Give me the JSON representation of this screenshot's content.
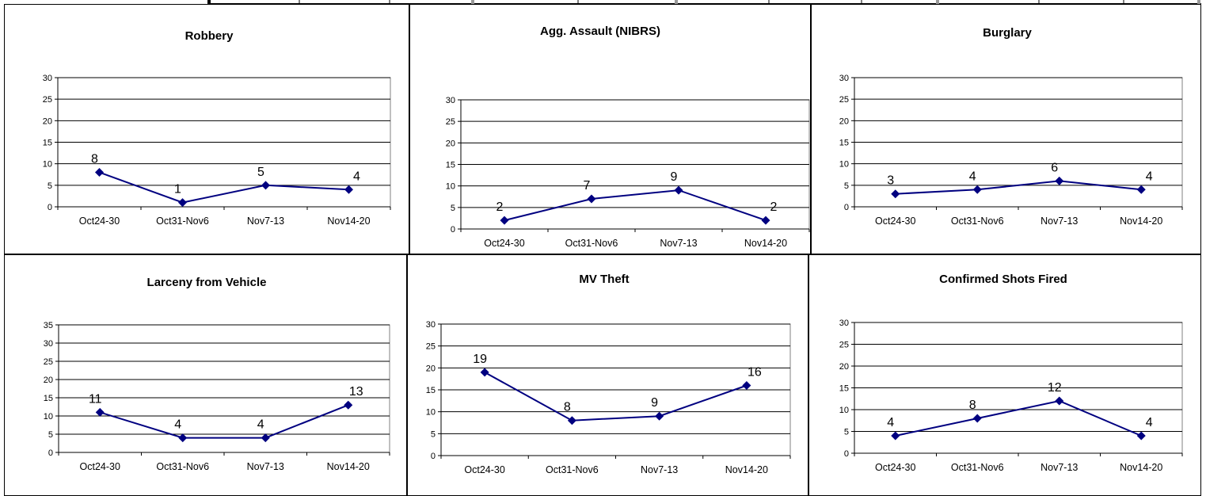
{
  "colors": {
    "series": "#000080",
    "gridline": "#000000",
    "plot_border": "#808080"
  },
  "chart_data": [
    {
      "type": "line",
      "title": "Robbery",
      "categories": [
        "Oct24-30",
        "Oct31-Nov6",
        "Nov7-13",
        "Nov14-20"
      ],
      "values": [
        8,
        1,
        5,
        4
      ],
      "ylim": [
        0,
        30
      ],
      "ytick_step": 5,
      "grid": true,
      "marker": "diamond",
      "data_labels": true
    },
    {
      "type": "line",
      "title": "Agg. Assault (NIBRS)",
      "categories": [
        "Oct24-30",
        "Oct31-Nov6",
        "Nov7-13",
        "Nov14-20"
      ],
      "values": [
        2,
        7,
        9,
        2
      ],
      "ylim": [
        0,
        30
      ],
      "ytick_step": 5,
      "grid": true,
      "marker": "diamond",
      "data_labels": true
    },
    {
      "type": "line",
      "title": "Burglary",
      "categories": [
        "Oct24-30",
        "Oct31-Nov6",
        "Nov7-13",
        "Nov14-20"
      ],
      "values": [
        3,
        4,
        6,
        4
      ],
      "ylim": [
        0,
        30
      ],
      "ytick_step": 5,
      "grid": true,
      "marker": "diamond",
      "data_labels": true
    },
    {
      "type": "line",
      "title": "Larceny from Vehicle",
      "categories": [
        "Oct24-30",
        "Oct31-Nov6",
        "Nov7-13",
        "Nov14-20"
      ],
      "values": [
        11,
        4,
        4,
        13
      ],
      "ylim": [
        0,
        35
      ],
      "ytick_step": 5,
      "grid": true,
      "marker": "diamond",
      "data_labels": true
    },
    {
      "type": "line",
      "title": "MV Theft",
      "categories": [
        "Oct24-30",
        "Oct31-Nov6",
        "Nov7-13",
        "Nov14-20"
      ],
      "values": [
        19,
        8,
        9,
        16
      ],
      "ylim": [
        0,
        30
      ],
      "ytick_step": 5,
      "grid": true,
      "marker": "diamond",
      "data_labels": true
    },
    {
      "type": "line",
      "title": "Confirmed Shots Fired",
      "categories": [
        "Oct24-30",
        "Oct31-Nov6",
        "Nov7-13",
        "Nov14-20"
      ],
      "values": [
        4,
        8,
        12,
        4
      ],
      "ylim": [
        0,
        30
      ],
      "ytick_step": 5,
      "grid": true,
      "marker": "diamond",
      "data_labels": true
    }
  ]
}
